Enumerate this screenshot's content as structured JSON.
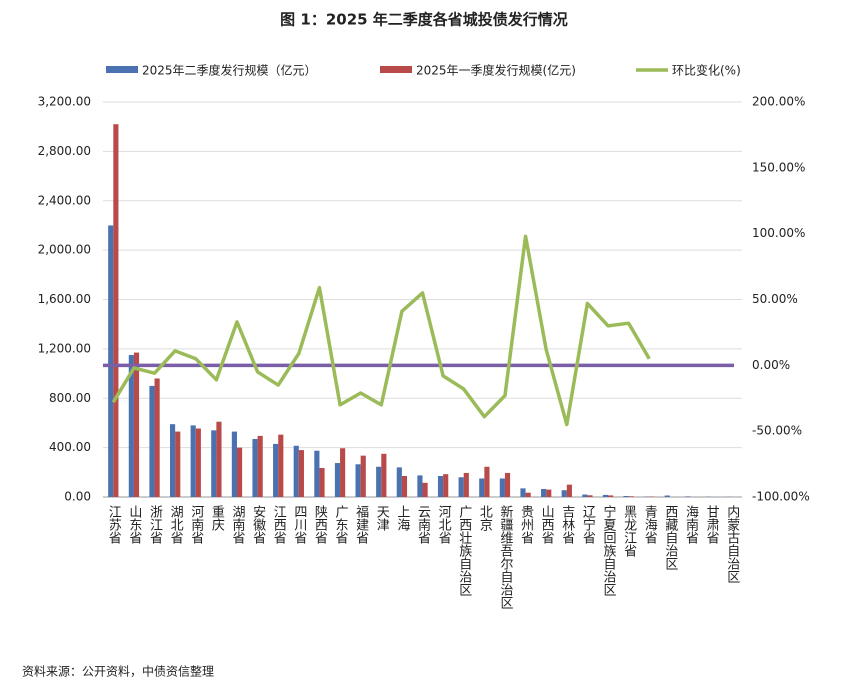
{
  "chart_data": {
    "type": "bar-line",
    "title": "图 1：2025 年二季度各省城投债发行情况",
    "source": "资料来源：公开资料，中债资信整理",
    "categories": [
      "江苏省",
      "山东省",
      "浙江省",
      "湖北省",
      "河南省",
      "重庆",
      "湖南省",
      "安徽省",
      "江西省",
      "四川省",
      "陕西省",
      "广东省",
      "福建省",
      "天津",
      "上海",
      "云南省",
      "河北省",
      "广西壮族自治区",
      "北京",
      "新疆维吾尔自治区",
      "贵州省",
      "山西省",
      "吉林省",
      "辽宁省",
      "宁夏回族自治区",
      "黑龙江省",
      "青海省",
      "西藏自治区",
      "海南省",
      "甘肃省",
      "内蒙古自治区"
    ],
    "series": [
      {
        "name": "2025年二季度发行规模（亿元）",
        "color": "#4a72b0",
        "type": "bar",
        "values": [
          2200,
          1150,
          900,
          590,
          580,
          540,
          530,
          470,
          430,
          415,
          375,
          275,
          265,
          245,
          240,
          175,
          170,
          160,
          150,
          150,
          70,
          65,
          55,
          20,
          17,
          8,
          4,
          12,
          5,
          3,
          2
        ]
      },
      {
        "name": "2025年一季度发行规模(亿元)",
        "color": "#b84a4a",
        "type": "bar",
        "values": [
          3020,
          1170,
          960,
          530,
          555,
          610,
          400,
          495,
          505,
          380,
          235,
          395,
          335,
          350,
          170,
          115,
          185,
          195,
          245,
          195,
          35,
          60,
          100,
          14,
          13,
          6,
          4,
          null,
          null,
          null,
          null
        ]
      },
      {
        "name": "环比变化(%)",
        "color": "#9bbb59",
        "type": "line",
        "axis": "y2",
        "values": [
          -28,
          -2,
          -6,
          11,
          5,
          -11,
          33,
          -5,
          -15,
          9,
          59,
          -30,
          -21,
          -30,
          41,
          55,
          -8,
          -18,
          -39,
          -23,
          98,
          12,
          -45,
          47,
          30,
          32,
          5,
          null,
          null,
          null,
          null
        ]
      }
    ],
    "ylim": [
      0,
      3200
    ],
    "yticks": [
      {
        "value": 0,
        "label": "0.00"
      },
      {
        "value": 400,
        "label": "400.00"
      },
      {
        "value": 800,
        "label": "800.00"
      },
      {
        "value": 1200,
        "label": "1,200.00"
      },
      {
        "value": 1600,
        "label": "1,600.00"
      },
      {
        "value": 2000,
        "label": "2,000.00"
      },
      {
        "value": 2400,
        "label": "2,400.00"
      },
      {
        "value": 2800,
        "label": "2,800.00"
      },
      {
        "value": 3200,
        "label": "3,200.00"
      }
    ],
    "y2lim": [
      -100,
      200
    ],
    "y2ticks": [
      {
        "value": -100,
        "label": "-100.00%"
      },
      {
        "value": -50,
        "label": "-50.00%"
      },
      {
        "value": 0,
        "label": "0.00%"
      },
      {
        "value": 50,
        "label": "50.00%"
      },
      {
        "value": 100,
        "label": "100.00%"
      },
      {
        "value": 150,
        "label": "150.00%"
      },
      {
        "value": 200,
        "label": "200.00%"
      }
    ],
    "grid": true,
    "zero_line_color": "#7a5ea8"
  }
}
